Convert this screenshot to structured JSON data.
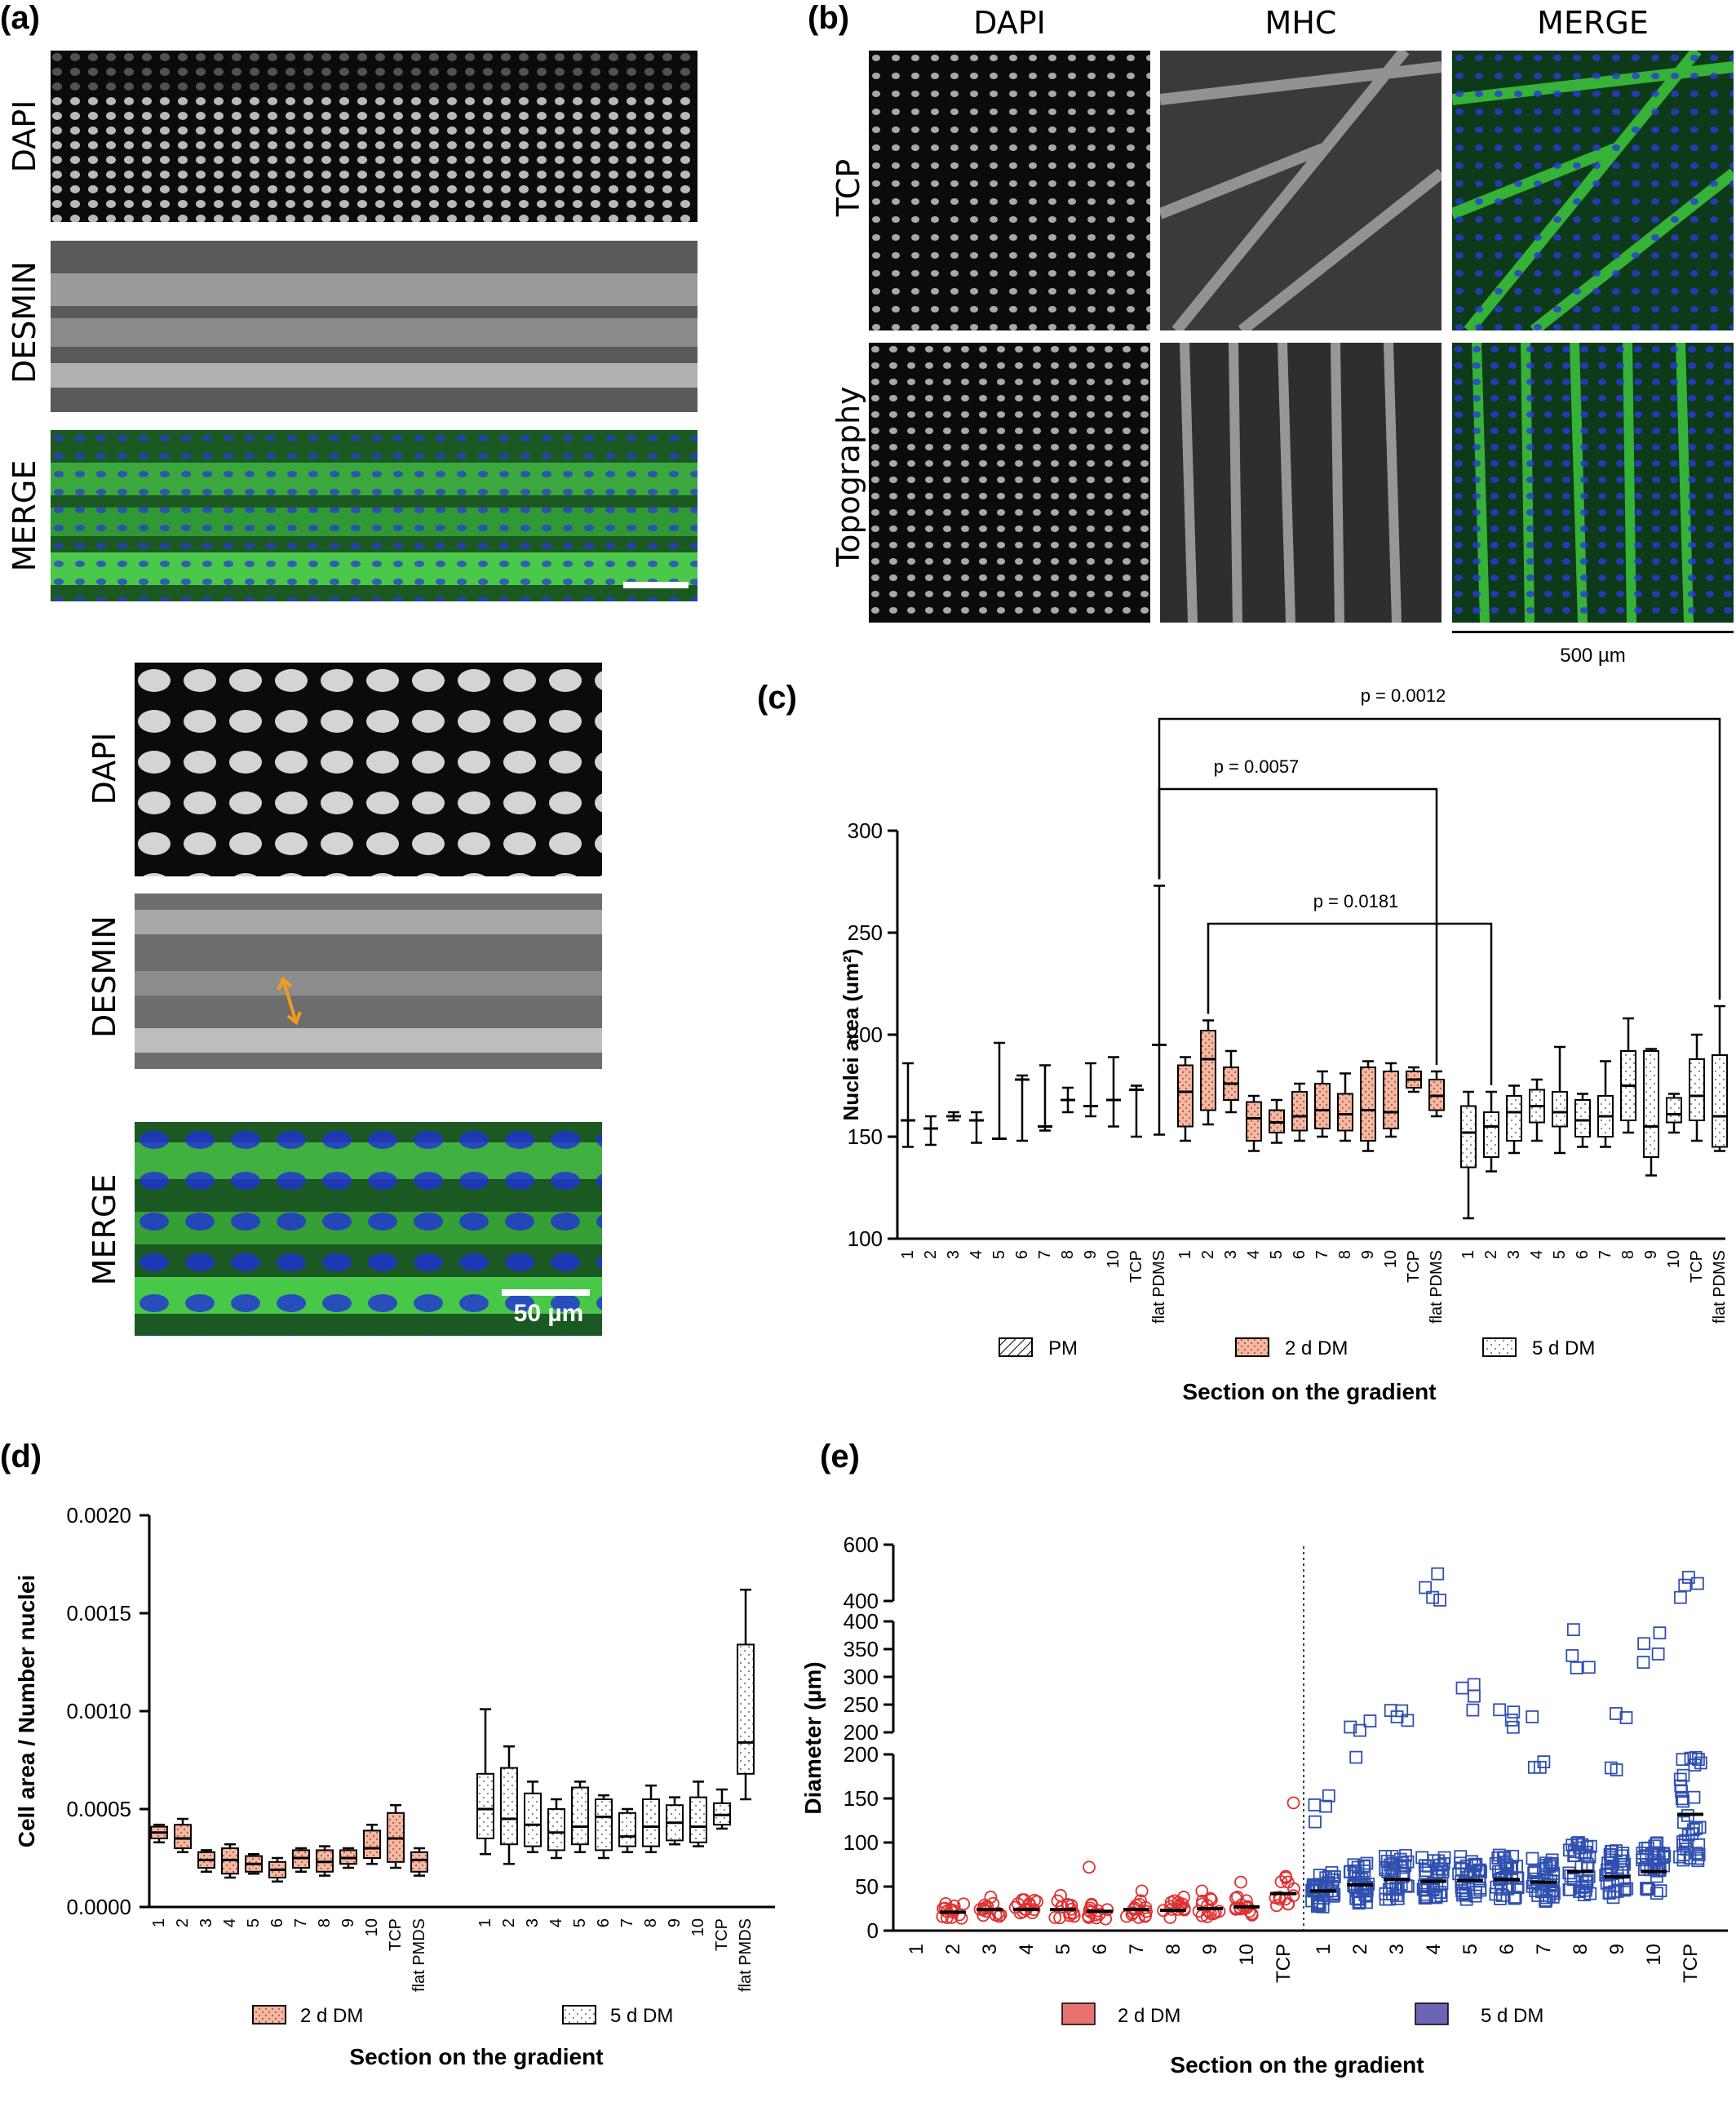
{
  "panel_a": {
    "label": "(a)",
    "rows": [
      "DAPI",
      "DESMIN",
      "MERGE"
    ],
    "zoom_rows": [
      "DAPI",
      "DESMIN",
      "MERGE"
    ],
    "scale_bar": "50 µm"
  },
  "panel_b": {
    "label": "(b)",
    "columns": [
      "DAPI",
      "MHC",
      "MERGE"
    ],
    "rows": [
      "TCP",
      "Topography"
    ],
    "scale_bar": "500 µm"
  },
  "colors": {
    "pm": "#000000",
    "dm2": "#f4b9a4",
    "dm5": "#ffffff",
    "scatter2": "#e03030",
    "scatter5": "#3050b0",
    "merge_green": "#3fd13f",
    "merge_blue": "#1f2fd8",
    "arrow": "#f59a1e"
  },
  "chart_data": [
    {
      "panel": "(c)",
      "type": "box",
      "ylabel": "Nuclei area (um²)",
      "xlabel": "Section on the gradient",
      "ylim": [
        100,
        300
      ],
      "yticks": [
        100,
        150,
        200,
        250,
        300
      ],
      "categories": [
        "1",
        "2",
        "3",
        "4",
        "5",
        "6",
        "7",
        "8",
        "9",
        "10",
        "TCP",
        "flat PDMS"
      ],
      "series": [
        {
          "name": "PM",
          "boxes": [
            {
              "min": 145,
              "q1": 158,
              "med": 158,
              "q3": 158,
              "max": 186
            },
            {
              "min": 146,
              "q1": 154,
              "med": 154,
              "q3": 154,
              "max": 160
            },
            {
              "min": 158,
              "q1": 160,
              "med": 160,
              "q3": 161,
              "max": 162
            },
            {
              "min": 147,
              "q1": 158,
              "med": 158,
              "q3": 159,
              "max": 162
            },
            {
              "min": 149,
              "q1": 149,
              "med": 149,
              "q3": 149,
              "max": 196
            },
            {
              "min": 148,
              "q1": 178,
              "med": 178,
              "q3": 179,
              "max": 180
            },
            {
              "min": 153,
              "q1": 155,
              "med": 155,
              "q3": 155,
              "max": 185
            },
            {
              "min": 162,
              "q1": 168,
              "med": 168,
              "q3": 169,
              "max": 174
            },
            {
              "min": 160,
              "q1": 165,
              "med": 165,
              "q3": 166,
              "max": 186
            },
            {
              "min": 155,
              "q1": 168,
              "med": 168,
              "q3": 168,
              "max": 189
            },
            {
              "min": 150,
              "q1": 173,
              "med": 173,
              "q3": 174,
              "max": 175
            },
            {
              "min": 151,
              "q1": 195,
              "med": 195,
              "q3": 195,
              "max": 273
            }
          ]
        },
        {
          "name": "2 d DM",
          "boxes": [
            {
              "min": 148,
              "q1": 155,
              "med": 172,
              "q3": 185,
              "max": 189
            },
            {
              "min": 156,
              "q1": 163,
              "med": 188,
              "q3": 202,
              "max": 207
            },
            {
              "min": 162,
              "q1": 168,
              "med": 176,
              "q3": 184,
              "max": 192
            },
            {
              "min": 143,
              "q1": 148,
              "med": 159,
              "q3": 167,
              "max": 170
            },
            {
              "min": 147,
              "q1": 152,
              "med": 157,
              "q3": 163,
              "max": 168
            },
            {
              "min": 148,
              "q1": 153,
              "med": 160,
              "q3": 172,
              "max": 176
            },
            {
              "min": 150,
              "q1": 154,
              "med": 163,
              "q3": 176,
              "max": 182
            },
            {
              "min": 148,
              "q1": 153,
              "med": 161,
              "q3": 171,
              "max": 181
            },
            {
              "min": 143,
              "q1": 148,
              "med": 163,
              "q3": 184,
              "max": 187
            },
            {
              "min": 150,
              "q1": 154,
              "med": 162,
              "q3": 182,
              "max": 186
            },
            {
              "min": 172,
              "q1": 174,
              "med": 178,
              "q3": 182,
              "max": 184
            },
            {
              "min": 160,
              "q1": 163,
              "med": 170,
              "q3": 178,
              "max": 182
            }
          ]
        },
        {
          "name": "5 d DM",
          "boxes": [
            {
              "min": 110,
              "q1": 135,
              "med": 152,
              "q3": 165,
              "max": 172
            },
            {
              "min": 133,
              "q1": 140,
              "med": 155,
              "q3": 162,
              "max": 172
            },
            {
              "min": 142,
              "q1": 148,
              "med": 162,
              "q3": 170,
              "max": 175
            },
            {
              "min": 148,
              "q1": 157,
              "med": 165,
              "q3": 173,
              "max": 178
            },
            {
              "min": 142,
              "q1": 155,
              "med": 162,
              "q3": 172,
              "max": 194
            },
            {
              "min": 145,
              "q1": 150,
              "med": 158,
              "q3": 168,
              "max": 171
            },
            {
              "min": 145,
              "q1": 150,
              "med": 160,
              "q3": 170,
              "max": 187
            },
            {
              "min": 152,
              "q1": 158,
              "med": 175,
              "q3": 192,
              "max": 208
            },
            {
              "min": 131,
              "q1": 140,
              "med": 155,
              "q3": 192,
              "max": 193
            },
            {
              "min": 152,
              "q1": 157,
              "med": 161,
              "q3": 169,
              "max": 171
            },
            {
              "min": 148,
              "q1": 158,
              "med": 170,
              "q3": 188,
              "max": 200
            },
            {
              "min": 143,
              "q1": 145,
              "med": 160,
              "q3": 190,
              "max": 214
            }
          ]
        }
      ],
      "annotations": [
        "p = 0.0012",
        "p = 0.0057",
        "p = 0.0181"
      ],
      "legend": [
        "PM",
        "2 d DM",
        "5 d DM"
      ]
    },
    {
      "panel": "(d)",
      "type": "box",
      "ylabel": "Cell area / Number nuclei",
      "xlabel": "Section on the gradient",
      "ylim": [
        0,
        0.002
      ],
      "yticks": [
        "0.0000",
        "0.0005",
        "0.0010",
        "0.0015",
        "0.0020"
      ],
      "categories": [
        "1",
        "2",
        "3",
        "4",
        "5",
        "6",
        "7",
        "8",
        "9",
        "10",
        "TCP",
        "flat PMDS"
      ],
      "series": [
        {
          "name": "2 d DM",
          "boxes": [
            {
              "min": 0.00033,
              "q1": 0.00035,
              "med": 0.00038,
              "q3": 0.00041,
              "max": 0.00042
            },
            {
              "min": 0.00028,
              "q1": 0.0003,
              "med": 0.00035,
              "q3": 0.00042,
              "max": 0.00045
            },
            {
              "min": 0.00018,
              "q1": 0.0002,
              "med": 0.00024,
              "q3": 0.00028,
              "max": 0.00029
            },
            {
              "min": 0.00015,
              "q1": 0.00017,
              "med": 0.00024,
              "q3": 0.0003,
              "max": 0.00032
            },
            {
              "min": 0.00017,
              "q1": 0.00018,
              "med": 0.00022,
              "q3": 0.00026,
              "max": 0.00027
            },
            {
              "min": 0.00013,
              "q1": 0.00015,
              "med": 0.00019,
              "q3": 0.00023,
              "max": 0.00025
            },
            {
              "min": 0.00018,
              "q1": 0.0002,
              "med": 0.00025,
              "q3": 0.00029,
              "max": 0.0003
            },
            {
              "min": 0.00016,
              "q1": 0.00018,
              "med": 0.00023,
              "q3": 0.00029,
              "max": 0.00031
            },
            {
              "min": 0.0002,
              "q1": 0.00022,
              "med": 0.00025,
              "q3": 0.00029,
              "max": 0.0003
            },
            {
              "min": 0.00022,
              "q1": 0.00025,
              "med": 0.0003,
              "q3": 0.00039,
              "max": 0.00042
            },
            {
              "min": 0.0002,
              "q1": 0.00023,
              "med": 0.00035,
              "q3": 0.00048,
              "max": 0.00052
            },
            {
              "min": 0.00016,
              "q1": 0.00018,
              "med": 0.00024,
              "q3": 0.00028,
              "max": 0.0003
            }
          ]
        },
        {
          "name": "5 d DM",
          "boxes": [
            {
              "min": 0.00027,
              "q1": 0.00035,
              "med": 0.0005,
              "q3": 0.00068,
              "max": 0.00101
            },
            {
              "min": 0.00022,
              "q1": 0.00032,
              "med": 0.00045,
              "q3": 0.00071,
              "max": 0.00082
            },
            {
              "min": 0.00028,
              "q1": 0.00031,
              "med": 0.00042,
              "q3": 0.00058,
              "max": 0.00064
            },
            {
              "min": 0.00025,
              "q1": 0.00029,
              "med": 0.00038,
              "q3": 0.0005,
              "max": 0.00055
            },
            {
              "min": 0.00028,
              "q1": 0.00032,
              "med": 0.00041,
              "q3": 0.00061,
              "max": 0.00064
            },
            {
              "min": 0.00025,
              "q1": 0.00029,
              "med": 0.00046,
              "q3": 0.00055,
              "max": 0.00057
            },
            {
              "min": 0.00028,
              "q1": 0.00031,
              "med": 0.00036,
              "q3": 0.00048,
              "max": 0.0005
            },
            {
              "min": 0.00028,
              "q1": 0.00031,
              "med": 0.00041,
              "q3": 0.00055,
              "max": 0.00062
            },
            {
              "min": 0.00032,
              "q1": 0.00034,
              "med": 0.00043,
              "q3": 0.00052,
              "max": 0.00056
            },
            {
              "min": 0.00031,
              "q1": 0.00033,
              "med": 0.00041,
              "q3": 0.00056,
              "max": 0.00064
            },
            {
              "min": 0.0004,
              "q1": 0.00042,
              "med": 0.00047,
              "q3": 0.00053,
              "max": 0.0006
            },
            {
              "min": 0.00055,
              "q1": 0.00068,
              "med": 0.00084,
              "q3": 0.00134,
              "max": 0.00162
            }
          ]
        }
      ],
      "legend": [
        "2 d DM",
        "5 d DM"
      ]
    },
    {
      "panel": "(e)",
      "type": "scatter",
      "ylabel": "Diameter (µm)",
      "xlabel": "Section on the gradient",
      "y_axis_segments": [
        {
          "range": [
            0,
            200
          ],
          "ticks": [
            0,
            50,
            100,
            150,
            200
          ]
        },
        {
          "range": [
            200,
            400
          ],
          "ticks": [
            200,
            250,
            300,
            350,
            400
          ]
        },
        {
          "range": [
            400,
            600
          ],
          "ticks": [
            400,
            600
          ]
        }
      ],
      "categories": [
        "1",
        "2",
        "3",
        "4",
        "5",
        "6",
        "7",
        "8",
        "9",
        "10",
        "TCP"
      ],
      "series": [
        {
          "name": "2 d DM",
          "marker": "circle",
          "medians": [
            null,
            21,
            24,
            24,
            24,
            22,
            24,
            23,
            25,
            27,
            42
          ],
          "max": [
            null,
            28,
            38,
            35,
            40,
            72,
            45,
            38,
            45,
            55,
            145
          ]
        },
        {
          "name": "5 d DM",
          "marker": "square",
          "medians": [
            45,
            52,
            58,
            56,
            57,
            58,
            55,
            67,
            61,
            67,
            132
          ],
          "max": [
            160,
            250,
            295,
            530,
            300,
            270,
            230,
            420,
            235,
            410,
            500
          ]
        }
      ],
      "legend": [
        "2 d DM",
        "5 d DM"
      ]
    }
  ]
}
